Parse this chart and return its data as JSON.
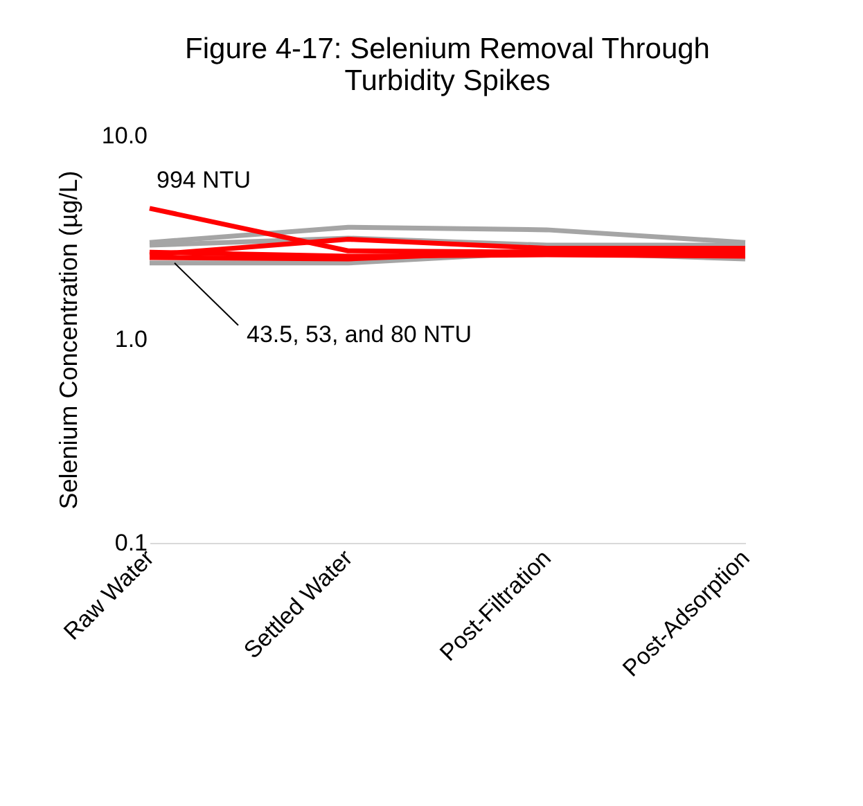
{
  "chart_data": {
    "type": "line",
    "title": [
      "Figure 4-17: Selenium Removal Through",
      "Turbidity Spikes"
    ],
    "ylabel": "Selenium Concentration (µg/L)",
    "categories": [
      "Raw Water",
      "Settled Water",
      "Post-Filtration",
      "Post-Adsorption"
    ],
    "log": "y",
    "ylim": [
      0.1,
      10
    ],
    "yticks": [
      {
        "value": 0.1,
        "label": "0.1"
      },
      {
        "value": 1,
        "label": "1.0"
      },
      {
        "value": 10,
        "label": "10.0"
      }
    ],
    "grid": false,
    "legend": false,
    "marker": "none",
    "line_style": "solid",
    "series": [
      {
        "color": "#a5a5a5",
        "values": [
          2.99,
          3.55,
          3.45,
          2.99
        ]
      },
      {
        "color": "#a5a5a5",
        "values": [
          2.37,
          2.37,
          2.68,
          2.48
        ]
      },
      {
        "color": "#a5a5a5",
        "values": [
          2.9,
          3.14,
          2.9,
          2.9
        ]
      },
      {
        "color": "#ff0000",
        "values": [
          4.4,
          2.72,
          2.68,
          2.68
        ]
      },
      {
        "color": "#ff0000",
        "values": [
          2.6,
          3.1,
          2.8,
          2.8
        ]
      },
      {
        "color": "#ff0000",
        "values": [
          2.68,
          2.56,
          2.6,
          2.56
        ]
      },
      {
        "color": "#ff0000",
        "values": [
          2.52,
          2.48,
          2.72,
          2.68
        ]
      }
    ],
    "annotations": [
      {
        "text": "994 NTU",
        "x": "Raw Water",
        "y": 4.4
      },
      {
        "text": "43.5, 53, and 80 NTU",
        "y": 2.37
      }
    ]
  }
}
